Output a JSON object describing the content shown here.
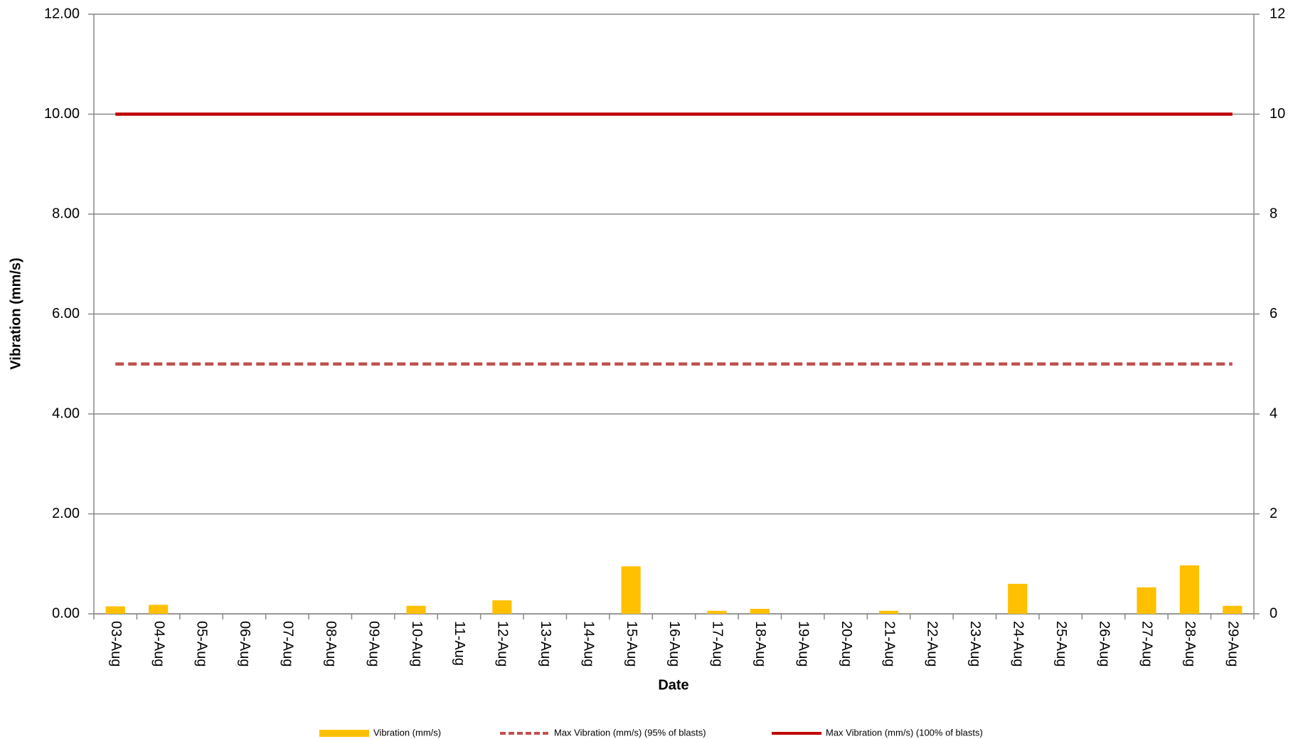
{
  "chart_data": {
    "type": "bar",
    "x_label": "Date",
    "y_label": "Vibration (mm/s)",
    "categories": [
      "03-Aug",
      "04-Aug",
      "05-Aug",
      "06-Aug",
      "07-Aug",
      "08-Aug",
      "09-Aug",
      "10-Aug",
      "11-Aug",
      "12-Aug",
      "13-Aug",
      "14-Aug",
      "15-Aug",
      "16-Aug",
      "17-Aug",
      "18-Aug",
      "19-Aug",
      "20-Aug",
      "21-Aug",
      "22-Aug",
      "23-Aug",
      "24-Aug",
      "25-Aug",
      "26-Aug",
      "27-Aug",
      "28-Aug",
      "29-Aug"
    ],
    "series": [
      {
        "name": "Vibration (mm/s)",
        "type": "bar",
        "color": "#ffc000",
        "values": [
          0.15,
          0.18,
          null,
          null,
          null,
          null,
          null,
          0.16,
          null,
          0.27,
          null,
          null,
          0.95,
          null,
          0.06,
          0.1,
          null,
          null,
          0.06,
          null,
          null,
          0.6,
          null,
          null,
          0.53,
          0.97,
          0.16
        ]
      },
      {
        "name": "Max Vibration (mm/s) (95% of blasts)",
        "type": "line",
        "line_style": "dashed",
        "color": "#c0504d",
        "values": [
          5,
          5,
          5,
          5,
          5,
          5,
          5,
          5,
          5,
          5,
          5,
          5,
          5,
          5,
          5,
          5,
          5,
          5,
          5,
          5,
          5,
          5,
          5,
          5,
          5,
          5,
          5
        ]
      },
      {
        "name": "Max Vibration (mm/s) (100% of blasts)",
        "type": "line",
        "line_style": "solid",
        "color": "#c00000",
        "values": [
          10,
          10,
          10,
          10,
          10,
          10,
          10,
          10,
          10,
          10,
          10,
          10,
          10,
          10,
          10,
          10,
          10,
          10,
          10,
          10,
          10,
          10,
          10,
          10,
          10,
          10,
          10
        ]
      }
    ],
    "ylim": [
      0,
      12
    ],
    "yticks": [
      {
        "value": 0,
        "label": "0.00"
      },
      {
        "value": 2,
        "label": "2.00"
      },
      {
        "value": 4,
        "label": "4.00"
      },
      {
        "value": 6,
        "label": "6.00"
      },
      {
        "value": 8,
        "label": "8.00"
      },
      {
        "value": 10,
        "label": "10.00"
      },
      {
        "value": 12,
        "label": "12.00"
      }
    ],
    "y2lim": [
      0,
      12
    ],
    "y2ticks": [
      0,
      2,
      4,
      6,
      8,
      10,
      12
    ],
    "grid": true,
    "legend": "bottom"
  }
}
